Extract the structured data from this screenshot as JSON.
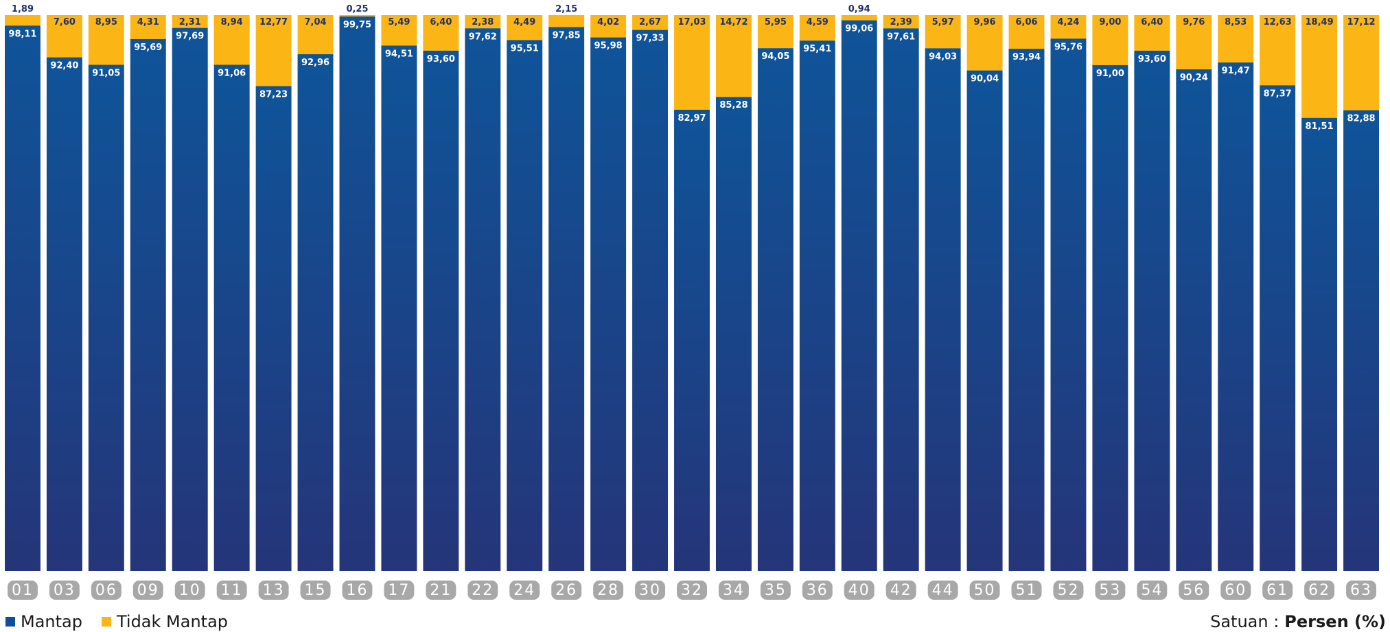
{
  "chart_data": {
    "type": "bar",
    "stacked": true,
    "categories": [
      "01",
      "03",
      "06",
      "09",
      "10",
      "11",
      "13",
      "15",
      "16",
      "17",
      "21",
      "22",
      "24",
      "26",
      "28",
      "30",
      "32",
      "34",
      "35",
      "36",
      "40",
      "42",
      "44",
      "50",
      "51",
      "52",
      "53",
      "54",
      "56",
      "60",
      "61",
      "62",
      "63"
    ],
    "series": [
      {
        "name": "Mantap",
        "color": "#0f4e98",
        "labels": [
          "98,11",
          "92,40",
          "91,05",
          "95,69",
          "97,69",
          "91,06",
          "87,23",
          "92,96",
          "99,75",
          "94,51",
          "93,60",
          "97,62",
          "95,51",
          "97,85",
          "95,98",
          "97,33",
          "82,97",
          "85,28",
          "94,05",
          "95,41",
          "99,06",
          "97,61",
          "94,03",
          "90,04",
          "93,94",
          "95,76",
          "91,00",
          "93,60",
          "90,24",
          "91,47",
          "87,37",
          "81,51",
          "82,88"
        ],
        "values": [
          98.11,
          92.4,
          91.05,
          95.69,
          97.69,
          91.06,
          87.23,
          92.96,
          99.75,
          94.51,
          93.6,
          97.62,
          95.51,
          97.85,
          95.98,
          97.33,
          82.97,
          85.28,
          94.05,
          95.41,
          99.06,
          97.61,
          94.03,
          90.04,
          93.94,
          95.76,
          91.0,
          93.6,
          90.24,
          91.47,
          87.37,
          81.51,
          82.88
        ]
      },
      {
        "name": "Tidak Mantap",
        "color": "#fbb515",
        "labels": [
          "1,89",
          "7,60",
          "8,95",
          "4,31",
          "2,31",
          "8,94",
          "12,77",
          "7,04",
          "0,25",
          "5,49",
          "6,40",
          "2,38",
          "4,49",
          "2,15",
          "4,02",
          "2,67",
          "17,03",
          "14,72",
          "5,95",
          "4,59",
          "0,94",
          "2,39",
          "5,97",
          "9,96",
          "6,06",
          "4,24",
          "9,00",
          "6,40",
          "9,76",
          "8,53",
          "12,63",
          "18,49",
          "17,12"
        ],
        "values": [
          1.89,
          7.6,
          8.95,
          4.31,
          2.31,
          8.94,
          12.77,
          7.04,
          0.25,
          5.49,
          6.4,
          2.38,
          4.49,
          2.15,
          4.02,
          2.67,
          17.03,
          14.72,
          5.95,
          4.59,
          0.94,
          2.39,
          5.97,
          9.96,
          6.06,
          4.24,
          9.0,
          6.4,
          9.76,
          8.53,
          12.63,
          18.49,
          17.12
        ]
      }
    ],
    "ylim": [
      0,
      100
    ],
    "grid": false,
    "legend_position": "bottom-left",
    "title": "",
    "xlabel": "",
    "ylabel": ""
  },
  "legend": {
    "items": [
      {
        "label": "Mantap",
        "color": "#0f4e98"
      },
      {
        "label": "Tidak Mantap",
        "color": "#fbb515"
      }
    ]
  },
  "unit": {
    "prefix": "Satuan :",
    "value": "Persen (%)"
  },
  "colors": {
    "mantap_top": "#0f5499",
    "mantap_bottom": "#253579",
    "tidak_mantap": "#fbb515",
    "category_pill": "#a8a8a8",
    "label_dark": "#1e2f6b"
  }
}
